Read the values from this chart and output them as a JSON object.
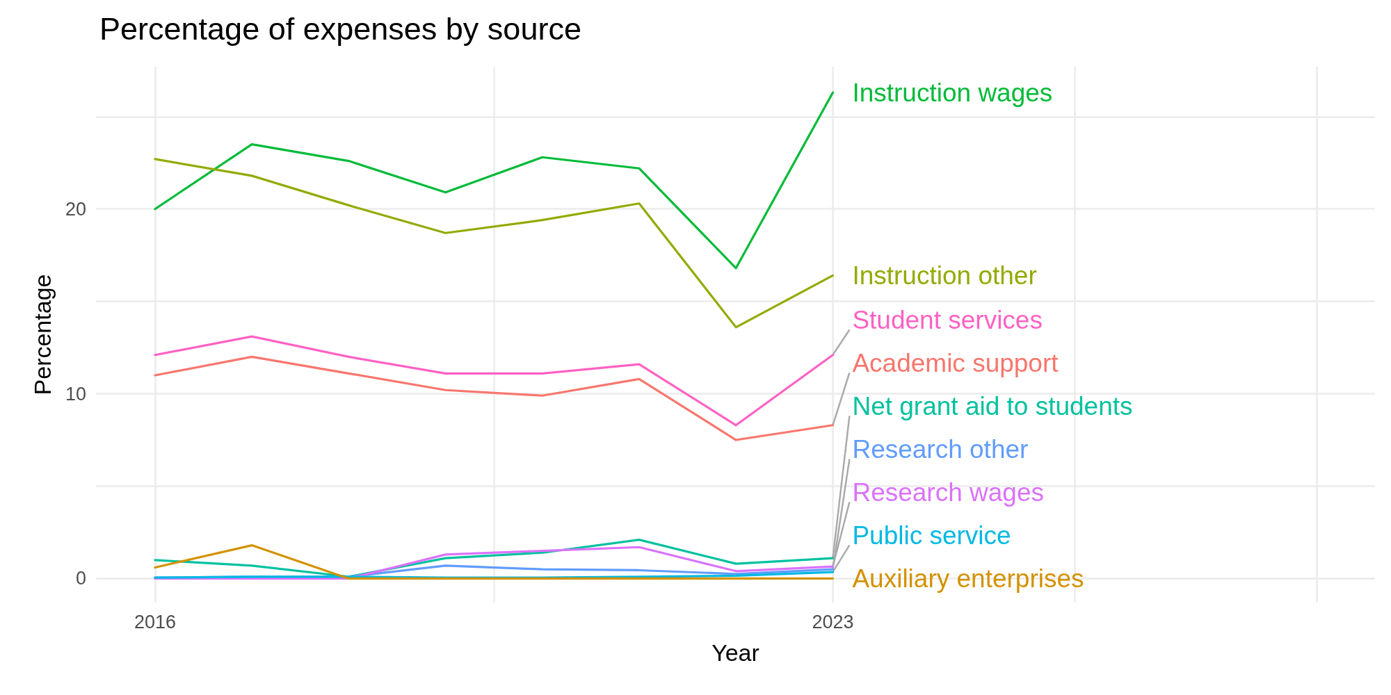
{
  "chart_data": {
    "type": "line",
    "title": "Percentage of expenses by source",
    "xlabel": "Year",
    "ylabel": "Percentage",
    "x": [
      2016,
      2017,
      2018,
      2019,
      2020,
      2021,
      2022,
      2023
    ],
    "xlim": [
      2015.39,
      2028.6
    ],
    "xticks": [
      2016,
      {
        "value": 2019.5,
        "label": null
      },
      2023,
      {
        "value": 2025.5,
        "label": null
      },
      {
        "value": 2028,
        "label": null
      }
    ],
    "ylim": [
      -1.3,
      27.7
    ],
    "yticks": [
      0,
      {
        "value": 5,
        "label": null
      },
      10,
      {
        "value": 15,
        "label": null
      },
      20,
      {
        "value": 25,
        "label": null
      }
    ],
    "grid": true,
    "legend": false,
    "marker": "none",
    "line_style": "solid",
    "series": [
      {
        "name": "Instruction wages",
        "color": "#00ba38",
        "values": [
          20.0,
          23.5,
          22.6,
          20.9,
          22.8,
          22.2,
          16.8,
          26.3
        ]
      },
      {
        "name": "Instruction other",
        "color": "#93aa00",
        "values": [
          22.7,
          21.8,
          20.2,
          18.7,
          19.4,
          20.3,
          13.6,
          16.4
        ]
      },
      {
        "name": "Student services",
        "color": "#ff61c3",
        "values": [
          12.1,
          13.1,
          12.0,
          11.1,
          11.1,
          11.6,
          8.3,
          12.1
        ]
      },
      {
        "name": "Academic support",
        "color": "#f8766d",
        "values": [
          11.0,
          12.0,
          11.1,
          10.2,
          9.9,
          10.8,
          7.5,
          8.3
        ]
      },
      {
        "name": "Net grant aid to students",
        "color": "#00c19f",
        "values": [
          1.0,
          0.7,
          0.1,
          1.1,
          1.4,
          2.1,
          0.8,
          1.1
        ]
      },
      {
        "name": "Research other",
        "color": "#619cff",
        "values": [
          0.05,
          0.1,
          0.1,
          0.7,
          0.5,
          0.45,
          0.25,
          0.5
        ]
      },
      {
        "name": "Research wages",
        "color": "#db72fb",
        "values": [
          0,
          0,
          0,
          1.3,
          1.5,
          1.7,
          0.4,
          0.65
        ]
      },
      {
        "name": "Public service",
        "color": "#00b9e3",
        "values": [
          0.05,
          0.1,
          0.1,
          0.05,
          0.05,
          0.1,
          0.15,
          0.35
        ]
      },
      {
        "name": "Auxiliary enterprises",
        "color": "#d39200",
        "values": [
          0.6,
          1.8,
          0,
          0,
          0,
          0,
          0,
          0
        ]
      }
    ]
  }
}
